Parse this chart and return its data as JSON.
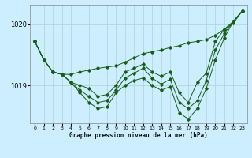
{
  "xlabel": "Graphe pression niveau de la mer (hPa)",
  "bg_color": "#cceeff",
  "grid_color": "#aad4d4",
  "line_color": "#1a5c1a",
  "hours": [
    0,
    1,
    2,
    3,
    4,
    5,
    6,
    7,
    8,
    9,
    10,
    11,
    12,
    13,
    14,
    15,
    16,
    17,
    18,
    19,
    20,
    21,
    22,
    23
  ],
  "series": [
    [
      1019.72,
      1019.42,
      1019.22,
      1019.18,
      1019.18,
      1019.22,
      1019.25,
      1019.28,
      1019.3,
      1019.32,
      1019.38,
      1019.45,
      1019.52,
      1019.55,
      1019.58,
      1019.62,
      1019.65,
      1019.7,
      1019.72,
      1019.75,
      1019.82,
      1019.92,
      1020.02,
      1020.22
    ],
    [
      1019.72,
      1019.42,
      1019.22,
      1019.18,
      1019.05,
      1019.0,
      1018.95,
      1018.82,
      1018.85,
      1019.0,
      1019.22,
      1019.28,
      1019.35,
      1019.22,
      1019.15,
      1019.22,
      1018.88,
      1018.72,
      1019.05,
      1019.2,
      1019.72,
      1019.92,
      1020.05,
      1020.22
    ],
    [
      1019.72,
      1019.42,
      1019.22,
      1019.18,
      1019.05,
      1018.92,
      1018.82,
      1018.72,
      1018.75,
      1018.92,
      1019.12,
      1019.2,
      1019.28,
      1019.12,
      1019.02,
      1019.1,
      1018.72,
      1018.62,
      1018.75,
      1019.08,
      1019.58,
      1019.85,
      1020.05,
      1020.22
    ],
    [
      1019.72,
      1019.42,
      1019.22,
      1019.18,
      1019.05,
      1018.88,
      1018.72,
      1018.62,
      1018.65,
      1018.88,
      1019.0,
      1019.08,
      1019.12,
      1019.0,
      1018.92,
      1018.98,
      1018.55,
      1018.45,
      1018.62,
      1018.95,
      1019.42,
      1019.78,
      1020.05,
      1020.22
    ]
  ],
  "ylim": [
    1018.38,
    1020.32
  ],
  "yticks": [
    1019.0,
    1020.0
  ],
  "xlim": [
    -0.5,
    23.5
  ],
  "figsize": [
    3.2,
    2.0
  ],
  "dpi": 100
}
